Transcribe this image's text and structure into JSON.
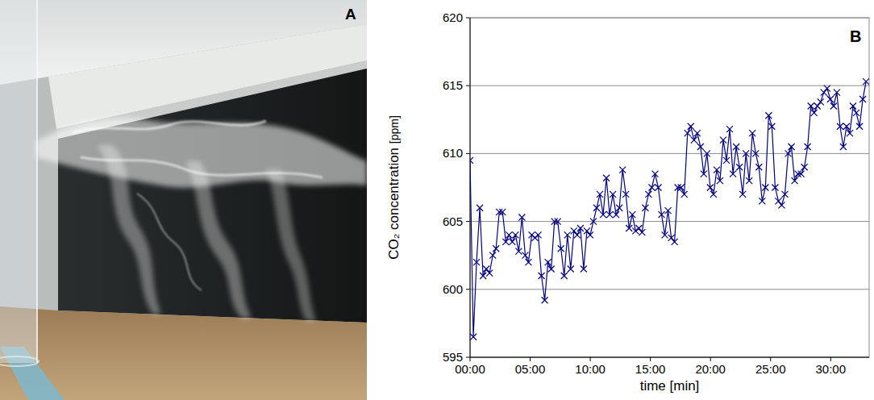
{
  "photo": {
    "panel_label": "A"
  },
  "chart_data": {
    "type": "line",
    "panel_label": "B",
    "xlabel": "time [min]",
    "ylabel": "CO₂ concentration [ppm]",
    "x": [
      0,
      0.27,
      0.54,
      0.81,
      1.08,
      1.35,
      1.62,
      1.89,
      2.16,
      2.43,
      2.7,
      2.97,
      3.24,
      3.51,
      3.78,
      4.05,
      4.32,
      4.59,
      4.86,
      5.13,
      5.4,
      5.67,
      5.94,
      6.21,
      6.48,
      6.75,
      7.02,
      7.29,
      7.56,
      7.83,
      8.1,
      8.37,
      8.64,
      8.91,
      9.18,
      9.45,
      9.72,
      9.99,
      10.26,
      10.53,
      10.8,
      11.07,
      11.34,
      11.61,
      11.88,
      12.15,
      12.42,
      12.69,
      12.96,
      13.23,
      13.5,
      13.77,
      14.04,
      14.31,
      14.58,
      14.85,
      15.12,
      15.39,
      15.66,
      15.93,
      16.2,
      16.47,
      16.74,
      17.01,
      17.28,
      17.55,
      17.82,
      18.09,
      18.36,
      18.63,
      18.9,
      19.17,
      19.44,
      19.71,
      19.98,
      20.25,
      20.52,
      20.79,
      21.06,
      21.33,
      21.6,
      21.87,
      22.14,
      22.41,
      22.68,
      22.95,
      23.22,
      23.49,
      23.76,
      24.03,
      24.3,
      24.57,
      24.84,
      25.11,
      25.38,
      25.65,
      25.92,
      26.19,
      26.46,
      26.73,
      27.0,
      27.27,
      27.54,
      27.81,
      28.08,
      28.35,
      28.62,
      28.89,
      29.16,
      29.43,
      29.7,
      29.97,
      30.24,
      30.51,
      30.78,
      31.05,
      31.32,
      31.59,
      31.86,
      32.13,
      32.4,
      32.67,
      32.94
    ],
    "series": [
      {
        "color": "#000080",
        "marker": "x",
        "line_style": "solid",
        "values": [
          609.5,
          596.5,
          602,
          606,
          601,
          601.5,
          601.2,
          602.5,
          603,
          605.7,
          605.7,
          603.5,
          604,
          603.5,
          604,
          602.8,
          605.3,
          602.5,
          602,
          604,
          603.8,
          604,
          601,
          599.2,
          602,
          601.5,
          605,
          605,
          603,
          601,
          604,
          601.5,
          604.3,
          604,
          604.5,
          601.5,
          604.3,
          604,
          605,
          606,
          607,
          605.5,
          608.2,
          605.5,
          607,
          605.5,
          606,
          608.8,
          607,
          604.5,
          605.5,
          604.3,
          604.5,
          604.2,
          606,
          607,
          607.5,
          608.5,
          607.5,
          605.5,
          604,
          605.8,
          603.8,
          603.5,
          607.5,
          607.5,
          607,
          611.5,
          612,
          611,
          611.5,
          610.5,
          608.5,
          610,
          607.5,
          607,
          608.8,
          608,
          611,
          609.5,
          611.8,
          608.5,
          610.5,
          609,
          607,
          610,
          608,
          611.5,
          610,
          609,
          606.5,
          607.5,
          612.8,
          612,
          607.5,
          606.5,
          606.2,
          607,
          610,
          610.5,
          608,
          608.5,
          608.5,
          609,
          610.5,
          613.5,
          613,
          613.5,
          613.8,
          614.5,
          614.8,
          614,
          613.5,
          614.5,
          612,
          610.5,
          612,
          611.5,
          613.5,
          613,
          612,
          614,
          615.3
        ]
      }
    ],
    "xlim": [
      0,
      33.2
    ],
    "xticks": [
      {
        "value": 0,
        "label": "00:00"
      },
      {
        "value": 5,
        "label": "05:00"
      },
      {
        "value": 10,
        "label": "10:00"
      },
      {
        "value": 15,
        "label": "15:00"
      },
      {
        "value": 20,
        "label": "20:00"
      },
      {
        "value": 25,
        "label": "25:00"
      },
      {
        "value": 30,
        "label": "30:00"
      }
    ],
    "ylim": [
      595,
      620
    ],
    "yticks": [
      595,
      600,
      605,
      610,
      615,
      620
    ],
    "grid": true
  }
}
